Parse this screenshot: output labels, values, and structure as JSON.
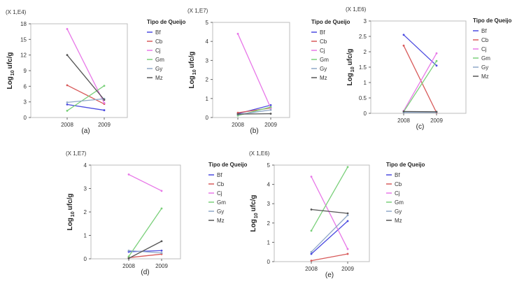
{
  "chart_data": [
    {
      "type": "line",
      "panel_label": "(a)",
      "scale_label": "(X 1,E4)",
      "ylabel_main": "Log",
      "ylabel_sub": "10",
      "ylabel_unit": "ufc/g",
      "categories": [
        "2008",
        "2009"
      ],
      "ylim": [
        0,
        18
      ],
      "yticks": [
        0,
        3,
        6,
        9,
        12,
        15,
        18
      ],
      "legend_title": "Tipo de Queijo",
      "series": [
        {
          "name": "Bf",
          "values": [
            2.5,
            1.4
          ],
          "color": "#4a4ae0"
        },
        {
          "name": "Cb",
          "values": [
            6.2,
            2.6
          ],
          "color": "#d85a5a"
        },
        {
          "name": "Cj",
          "values": [
            17.0,
            2.8
          ],
          "color": "#e878e8"
        },
        {
          "name": "Gm",
          "values": [
            1.3,
            6.1
          ],
          "color": "#7ad07a"
        },
        {
          "name": "Gy",
          "values": [
            2.9,
            3.6
          ],
          "color": "#8fa8c8"
        },
        {
          "name": "Mz",
          "values": [
            12.0,
            3.4
          ],
          "color": "#555555"
        }
      ]
    },
    {
      "type": "line",
      "panel_label": "(b)",
      "scale_label": "(X 1,E7)",
      "ylabel_main": "Log",
      "ylabel_sub": "10",
      "ylabel_unit": "ufc/g",
      "categories": [
        "2008",
        "2009"
      ],
      "ylim": [
        0,
        5
      ],
      "yticks": [
        0,
        1,
        2,
        3,
        4,
        5
      ],
      "legend_title": "Tipo de Queijo",
      "series": [
        {
          "name": "Bf",
          "values": [
            0.2,
            0.65
          ],
          "color": "#4a4ae0"
        },
        {
          "name": "Cb",
          "values": [
            0.25,
            0.5
          ],
          "color": "#d85a5a"
        },
        {
          "name": "Cj",
          "values": [
            4.4,
            0.5
          ],
          "color": "#e878e8"
        },
        {
          "name": "Gm",
          "values": [
            0.1,
            0.55
          ],
          "color": "#7ad07a"
        },
        {
          "name": "Gy",
          "values": [
            0.15,
            0.4
          ],
          "color": "#8fa8c8"
        },
        {
          "name": "Mz",
          "values": [
            0.18,
            0.2
          ],
          "color": "#555555"
        }
      ]
    },
    {
      "type": "line",
      "panel_label": "(c)",
      "scale_label": "(X 1,E6)",
      "ylabel_main": "Log",
      "ylabel_sub": "10",
      "ylabel_unit": "ufc/g",
      "categories": [
        "2008",
        "2009"
      ],
      "ylim": [
        0,
        3
      ],
      "yticks": [
        0,
        0.5,
        1,
        1.5,
        2,
        2.5,
        3
      ],
      "legend_title": "Tipo de Queijo",
      "series": [
        {
          "name": "Bf",
          "values": [
            2.55,
            1.55
          ],
          "color": "#4a4ae0"
        },
        {
          "name": "Cb",
          "values": [
            2.2,
            0.02
          ],
          "color": "#d85a5a"
        },
        {
          "name": "Cj",
          "values": [
            0.08,
            1.95
          ],
          "color": "#e878e8"
        },
        {
          "name": "Gm",
          "values": [
            0.05,
            1.7
          ],
          "color": "#7ad07a"
        },
        {
          "name": "Gy",
          "values": [
            0.03,
            0.03
          ],
          "color": "#8fa8c8"
        },
        {
          "name": "Mz",
          "values": [
            0.06,
            0.05
          ],
          "color": "#555555"
        }
      ]
    },
    {
      "type": "line",
      "panel_label": "(d)",
      "scale_label": "(X 1,E7)",
      "ylabel_main": "Log",
      "ylabel_sub": "10",
      "ylabel_unit": "ufc/g",
      "categories": [
        "2008",
        "2009"
      ],
      "ylim": [
        0,
        4
      ],
      "yticks": [
        0,
        1,
        2,
        3,
        4
      ],
      "legend_title": "Tipo de Queijo",
      "series": [
        {
          "name": "Bf",
          "values": [
            0.3,
            0.35
          ],
          "color": "#4a4ae0"
        },
        {
          "name": "Cb",
          "values": [
            0.05,
            0.2
          ],
          "color": "#d85a5a"
        },
        {
          "name": "Cj",
          "values": [
            3.6,
            2.9
          ],
          "color": "#e878e8"
        },
        {
          "name": "Gm",
          "values": [
            0.1,
            2.15
          ],
          "color": "#7ad07a"
        },
        {
          "name": "Gy",
          "values": [
            0.35,
            0.25
          ],
          "color": "#8fa8c8"
        },
        {
          "name": "Mz",
          "values": [
            0.02,
            0.75
          ],
          "color": "#555555"
        }
      ]
    },
    {
      "type": "line",
      "panel_label": "(e)",
      "scale_label": "(X 1,E6)",
      "ylabel_main": "Log",
      "ylabel_sub": "10",
      "ylabel_unit": "ufc/g",
      "categories": [
        "2008",
        "2009"
      ],
      "ylim": [
        0,
        5
      ],
      "yticks": [
        0,
        1,
        2,
        3,
        4,
        5
      ],
      "legend_title": "Tipo de Queijo",
      "series": [
        {
          "name": "Bf",
          "values": [
            0.4,
            2.1
          ],
          "color": "#4a4ae0"
        },
        {
          "name": "Cb",
          "values": [
            0.05,
            0.4
          ],
          "color": "#d85a5a"
        },
        {
          "name": "Cj",
          "values": [
            4.4,
            0.65
          ],
          "color": "#e878e8"
        },
        {
          "name": "Gm",
          "values": [
            1.6,
            4.9
          ],
          "color": "#7ad07a"
        },
        {
          "name": "Gy",
          "values": [
            0.5,
            2.4
          ],
          "color": "#8fa8c8"
        },
        {
          "name": "Mz",
          "values": [
            2.7,
            2.5
          ],
          "color": "#555555"
        }
      ]
    }
  ]
}
